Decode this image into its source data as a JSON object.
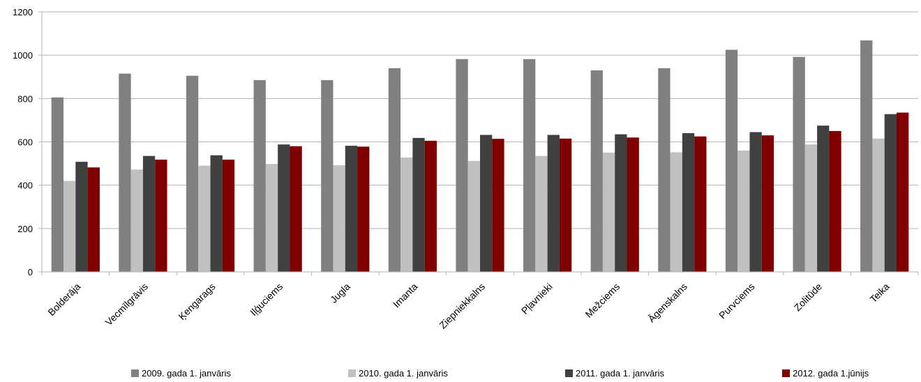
{
  "chart_data": {
    "type": "bar",
    "title": "",
    "xlabel": "",
    "ylabel": "",
    "ylim": [
      0,
      1200
    ],
    "yticks": [
      0,
      200,
      400,
      600,
      800,
      1000,
      1200
    ],
    "grid": "horizontal",
    "legend_position": "bottom",
    "categories": [
      "Bolderāja",
      "Vecmīlgrāvis",
      "Ķengarags",
      "Iļģuciems",
      "Jugla",
      "Imanta",
      "Ziepniekkalns",
      "Pļavnieki",
      "Mežciems",
      "Āgenskalns",
      "Purvciems",
      "Zolitūde",
      "Teika"
    ],
    "series": [
      {
        "name": "2009. gada 1. janvāris",
        "color": "#808080",
        "values": [
          805,
          915,
          905,
          885,
          885,
          940,
          982,
          982,
          930,
          940,
          1025,
          992,
          1068
        ]
      },
      {
        "name": "2010. gada 1. janvāris",
        "color": "#c0c0c0",
        "values": [
          420,
          472,
          490,
          498,
          492,
          528,
          512,
          535,
          550,
          552,
          560,
          588,
          615
        ]
      },
      {
        "name": "2011. gada 1. janvāris",
        "color": "#404040",
        "values": [
          508,
          535,
          538,
          588,
          582,
          618,
          632,
          632,
          635,
          640,
          645,
          675,
          728
        ]
      },
      {
        "name": "2012. gada 1.jūnijs",
        "color": "#800000",
        "values": [
          482,
          518,
          518,
          580,
          578,
          605,
          614,
          615,
          620,
          625,
          630,
          650,
          735
        ]
      }
    ]
  }
}
